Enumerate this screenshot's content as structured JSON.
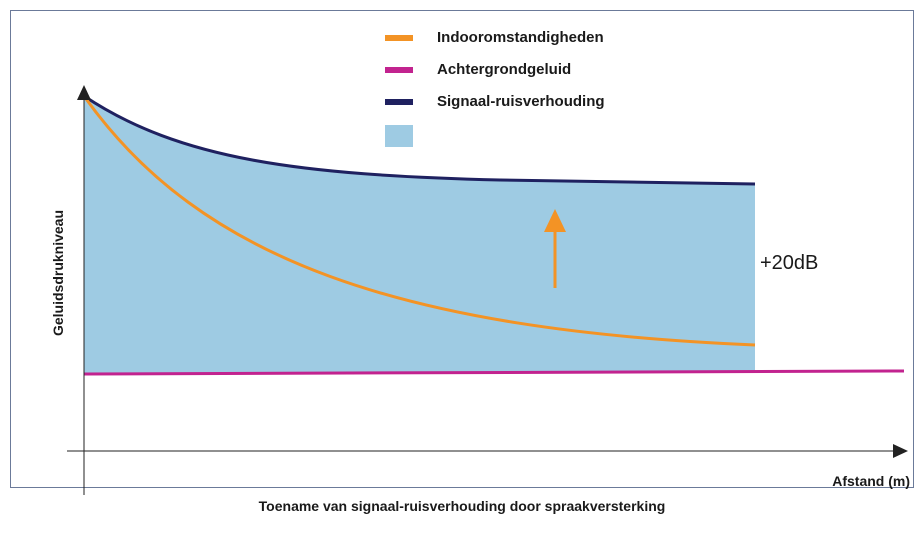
{
  "legend": {
    "items": [
      "Indooromstandigheden",
      "Achtergrondgeluid",
      "Signaal-ruisverhouding"
    ]
  },
  "y_axis_label": "Geluidsdrukniveau",
  "x_axis_label": "Afstand (m)",
  "annotation": "+20dB",
  "caption": "Toename van signaal-ruisverhouding door spraakversterking"
}
